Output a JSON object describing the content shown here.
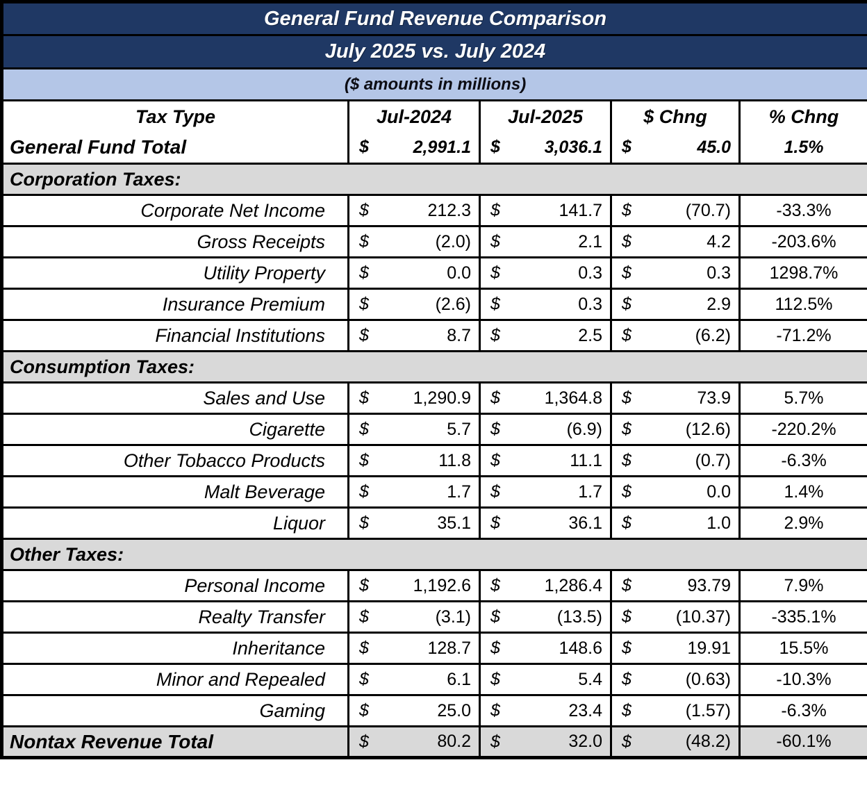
{
  "header": {
    "title_line1": "General Fund Revenue Comparison",
    "title_line2": "July 2025 vs. July 2024",
    "units_note": "($ amounts in millions)"
  },
  "columns": {
    "tax_type": "Tax Type",
    "jul_2024": "Jul-2024",
    "jul_2025": "Jul-2025",
    "dollar_chng": "$ Chng",
    "pct_chng": "% Chng"
  },
  "currency_symbol": "$",
  "colors": {
    "navy_header": "#1F3864",
    "light_blue_band": "#B4C6E7",
    "section_gray": "#D9D9D9",
    "border": "#000000",
    "title_text": "#FFFFFF"
  },
  "rows": [
    {
      "type": "total",
      "label": "General Fund Total",
      "jul_2024": "2,991.1",
      "jul_2025": "3,036.1",
      "dollar_chng": "45.0",
      "pct_chng": "1.5%"
    },
    {
      "type": "section",
      "label": "Corporation Taxes:"
    },
    {
      "type": "data",
      "label": "Corporate Net Income",
      "jul_2024": "212.3",
      "jul_2025": "141.7",
      "dollar_chng": "(70.7)",
      "pct_chng": "-33.3%"
    },
    {
      "type": "data",
      "label": "Gross Receipts",
      "jul_2024": "(2.0)",
      "jul_2025": "2.1",
      "dollar_chng": "4.2",
      "pct_chng": "-203.6%"
    },
    {
      "type": "data",
      "label": "Utility Property",
      "jul_2024": "0.0",
      "jul_2025": "0.3",
      "dollar_chng": "0.3",
      "pct_chng": "1298.7%"
    },
    {
      "type": "data",
      "label": "Insurance Premium",
      "jul_2024": "(2.6)",
      "jul_2025": "0.3",
      "dollar_chng": "2.9",
      "pct_chng": "112.5%"
    },
    {
      "type": "data",
      "label": "Financial Institutions",
      "jul_2024": "8.7",
      "jul_2025": "2.5",
      "dollar_chng": "(6.2)",
      "pct_chng": "-71.2%"
    },
    {
      "type": "section",
      "label": "Consumption Taxes:"
    },
    {
      "type": "data",
      "label": "Sales and Use",
      "jul_2024": "1,290.9",
      "jul_2025": "1,364.8",
      "dollar_chng": "73.9",
      "pct_chng": "5.7%"
    },
    {
      "type": "data",
      "label": "Cigarette",
      "jul_2024": "5.7",
      "jul_2025": "(6.9)",
      "dollar_chng": "(12.6)",
      "pct_chng": "-220.2%"
    },
    {
      "type": "data",
      "label": "Other Tobacco Products",
      "jul_2024": "11.8",
      "jul_2025": "11.1",
      "dollar_chng": "(0.7)",
      "pct_chng": "-6.3%"
    },
    {
      "type": "data",
      "label": "Malt Beverage",
      "jul_2024": "1.7",
      "jul_2025": "1.7",
      "dollar_chng": "0.0",
      "pct_chng": "1.4%"
    },
    {
      "type": "data",
      "label": "Liquor",
      "jul_2024": "35.1",
      "jul_2025": "36.1",
      "dollar_chng": "1.0",
      "pct_chng": "2.9%"
    },
    {
      "type": "section",
      "label": "Other Taxes:"
    },
    {
      "type": "data",
      "label": "Personal Income",
      "jul_2024": "1,192.6",
      "jul_2025": "1,286.4",
      "dollar_chng": "93.79",
      "pct_chng": "7.9%"
    },
    {
      "type": "data",
      "label": "Realty Transfer",
      "jul_2024": "(3.1)",
      "jul_2025": "(13.5)",
      "dollar_chng": "(10.37)",
      "pct_chng": "-335.1%"
    },
    {
      "type": "data",
      "label": "Inheritance",
      "jul_2024": "128.7",
      "jul_2025": "148.6",
      "dollar_chng": "19.91",
      "pct_chng": "15.5%"
    },
    {
      "type": "data",
      "label": "Minor and Repealed",
      "jul_2024": "6.1",
      "jul_2025": "5.4",
      "dollar_chng": "(0.63)",
      "pct_chng": "-10.3%"
    },
    {
      "type": "data",
      "label": "Gaming",
      "jul_2024": "25.0",
      "jul_2025": "23.4",
      "dollar_chng": "(1.57)",
      "pct_chng": "-6.3%"
    },
    {
      "type": "grand",
      "label": "Nontax Revenue Total",
      "jul_2024": "80.2",
      "jul_2025": "32.0",
      "dollar_chng": "(48.2)",
      "pct_chng": "-60.1%"
    }
  ]
}
